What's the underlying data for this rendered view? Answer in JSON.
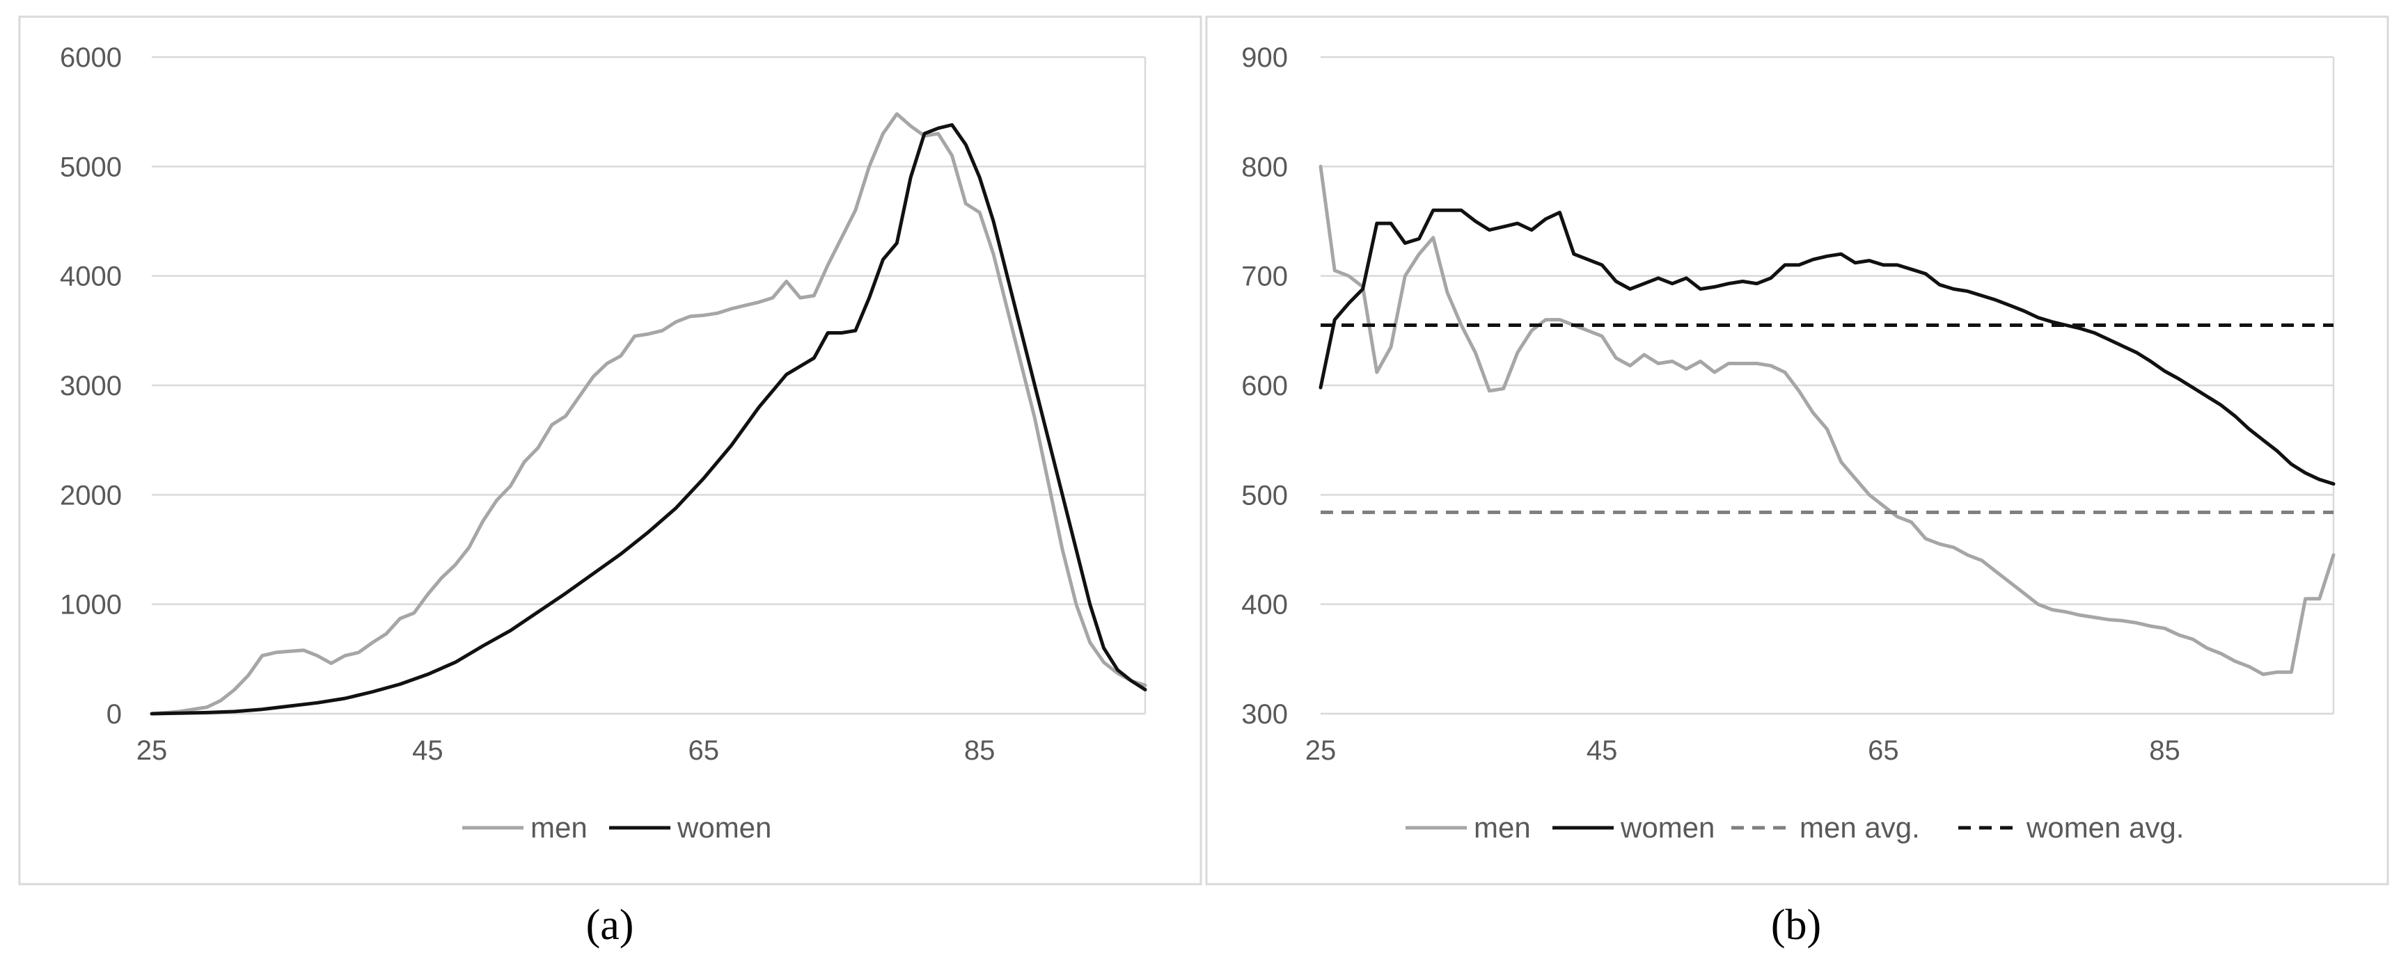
{
  "figure": {
    "panel_labels": [
      "(a)",
      "(b)"
    ]
  },
  "colors": {
    "men": "#A6A6A6",
    "women": "#111111",
    "men_avg": "#7F7F7F",
    "women_avg": "#111111",
    "grid": "#D9D9D9",
    "tick_text": "#595959",
    "frame": "#D9D9D9"
  },
  "chart_data": [
    {
      "id": "a",
      "type": "line",
      "title": "",
      "xlabel": "",
      "ylabel": "",
      "xlim": [
        25,
        97
      ],
      "ylim": [
        0,
        6000
      ],
      "x_ticks": [
        25,
        45,
        65,
        85
      ],
      "y_ticks": [
        0,
        1000,
        2000,
        3000,
        4000,
        5000,
        6000
      ],
      "grid": "horizontal",
      "legend": "bottom",
      "series": [
        {
          "name": "men",
          "style": "solid",
          "color_key": "men",
          "x": [
            25,
            27,
            29,
            30,
            31,
            32,
            33,
            34,
            35,
            36,
            37,
            38,
            39,
            40,
            41,
            42,
            43,
            44,
            45,
            46,
            47,
            48,
            49,
            50,
            51,
            52,
            53,
            54,
            55,
            56,
            57,
            58,
            59,
            60,
            61,
            62,
            63,
            64,
            65,
            66,
            67,
            68,
            69,
            70,
            71,
            72,
            73,
            74,
            75,
            76,
            77,
            78,
            79,
            80,
            81,
            82,
            83,
            84,
            85,
            86,
            87,
            88,
            89,
            90,
            91,
            92,
            93,
            94,
            95,
            96,
            97
          ],
          "y": [
            0,
            20,
            60,
            120,
            220,
            350,
            530,
            560,
            570,
            580,
            530,
            460,
            530,
            560,
            650,
            730,
            870,
            920,
            1090,
            1240,
            1360,
            1520,
            1760,
            1950,
            2080,
            2300,
            2430,
            2640,
            2720,
            2900,
            3080,
            3200,
            3270,
            3450,
            3470,
            3500,
            3580,
            3630,
            3640,
            3660,
            3700,
            3730,
            3760,
            3800,
            3950,
            3800,
            3820,
            4100,
            4350,
            4600,
            5000,
            5300,
            5480,
            5370,
            5280,
            5300,
            5100,
            4660,
            4580,
            4200,
            3700,
            3200,
            2700,
            2100,
            1500,
            1000,
            650,
            470,
            370,
            300,
            260
          ]
        },
        {
          "name": "women",
          "style": "solid",
          "color_key": "women",
          "x": [
            25,
            27,
            29,
            31,
            33,
            35,
            37,
            39,
            41,
            43,
            45,
            47,
            49,
            51,
            53,
            55,
            57,
            59,
            61,
            63,
            65,
            67,
            69,
            71,
            73,
            74,
            75,
            76,
            77,
            78,
            79,
            80,
            81,
            82,
            83,
            84,
            85,
            86,
            87,
            88,
            89,
            90,
            91,
            92,
            93,
            94,
            95,
            96,
            97
          ],
          "y": [
            0,
            5,
            10,
            20,
            40,
            70,
            100,
            140,
            200,
            270,
            360,
            470,
            620,
            760,
            930,
            1100,
            1280,
            1460,
            1660,
            1880,
            2150,
            2450,
            2800,
            3100,
            3250,
            3480,
            3480,
            3500,
            3800,
            4150,
            4300,
            4900,
            5300,
            5350,
            5380,
            5200,
            4900,
            4500,
            4000,
            3500,
            3000,
            2500,
            2000,
            1500,
            1000,
            600,
            400,
            300,
            220
          ]
        }
      ]
    },
    {
      "id": "b",
      "type": "line",
      "title": "",
      "xlabel": "",
      "ylabel": "",
      "xlim": [
        25,
        97
      ],
      "ylim": [
        300,
        900
      ],
      "x_ticks": [
        25,
        45,
        65,
        85
      ],
      "y_ticks": [
        300,
        400,
        500,
        600,
        700,
        800,
        900
      ],
      "grid": "horizontal",
      "legend": "bottom",
      "series": [
        {
          "name": "men",
          "style": "solid",
          "color_key": "men",
          "x": [
            25,
            26,
            27,
            28,
            29,
            30,
            31,
            32,
            33,
            34,
            35,
            36,
            37,
            38,
            39,
            40,
            41,
            42,
            43,
            44,
            45,
            46,
            47,
            48,
            49,
            50,
            51,
            52,
            53,
            54,
            55,
            56,
            57,
            58,
            59,
            60,
            61,
            62,
            63,
            64,
            65,
            66,
            67,
            68,
            69,
            70,
            71,
            72,
            73,
            74,
            75,
            76,
            77,
            78,
            79,
            80,
            81,
            82,
            83,
            84,
            85,
            86,
            87,
            88,
            89,
            90,
            91,
            92,
            93,
            94,
            95,
            96,
            97
          ],
          "y": [
            800,
            705,
            700,
            690,
            612,
            635,
            700,
            720,
            735,
            685,
            655,
            630,
            595,
            597,
            630,
            650,
            660,
            660,
            655,
            650,
            645,
            625,
            618,
            628,
            620,
            622,
            615,
            622,
            612,
            620,
            620,
            620,
            618,
            612,
            595,
            575,
            560,
            530,
            515,
            500,
            490,
            480,
            475,
            460,
            455,
            452,
            445,
            440,
            430,
            420,
            410,
            400,
            395,
            393,
            390,
            388,
            386,
            385,
            383,
            380,
            378,
            372,
            368,
            360,
            355,
            348,
            343,
            336,
            338,
            338,
            405,
            405,
            445
          ]
        },
        {
          "name": "women",
          "style": "solid",
          "color_key": "women",
          "x": [
            25,
            26,
            27,
            28,
            29,
            30,
            31,
            32,
            33,
            34,
            35,
            36,
            37,
            38,
            39,
            40,
            41,
            42,
            43,
            44,
            45,
            46,
            47,
            48,
            49,
            50,
            51,
            52,
            53,
            54,
            55,
            56,
            57,
            58,
            59,
            60,
            61,
            62,
            63,
            64,
            65,
            66,
            67,
            68,
            69,
            70,
            71,
            72,
            73,
            74,
            75,
            76,
            77,
            78,
            79,
            80,
            81,
            82,
            83,
            84,
            85,
            86,
            87,
            88,
            89,
            90,
            91,
            92,
            93,
            94,
            95,
            96,
            97
          ],
          "y": [
            598,
            660,
            675,
            688,
            748,
            748,
            730,
            734,
            760,
            760,
            760,
            750,
            742,
            745,
            748,
            742,
            752,
            758,
            720,
            715,
            710,
            695,
            688,
            693,
            698,
            693,
            698,
            688,
            690,
            693,
            695,
            693,
            698,
            710,
            710,
            715,
            718,
            720,
            712,
            714,
            710,
            710,
            706,
            702,
            692,
            688,
            686,
            682,
            678,
            673,
            668,
            662,
            658,
            655,
            652,
            648,
            642,
            636,
            630,
            622,
            613,
            606,
            598,
            590,
            582,
            572,
            560,
            550,
            540,
            528,
            520,
            514,
            510
          ]
        },
        {
          "name": "men avg.",
          "style": "dashed",
          "color_key": "men_avg",
          "x": [
            25,
            97
          ],
          "y": [
            484,
            484
          ]
        },
        {
          "name": "women avg.",
          "style": "dashed",
          "color_key": "women_avg",
          "x": [
            25,
            97
          ],
          "y": [
            655,
            655
          ]
        }
      ]
    }
  ]
}
